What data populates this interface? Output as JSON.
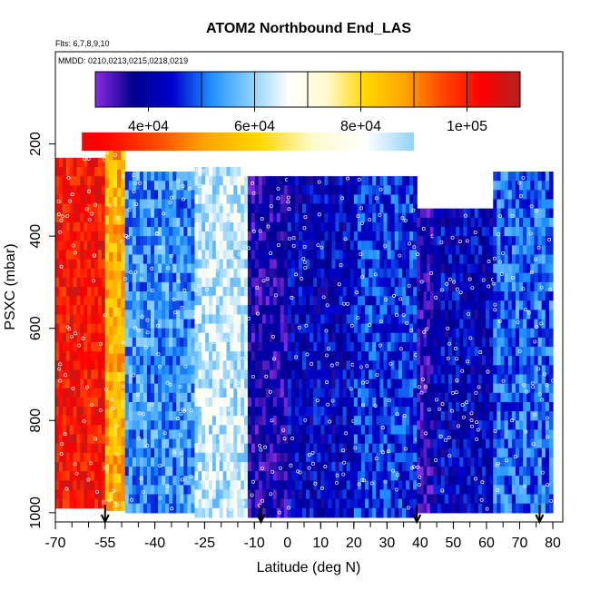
{
  "chart_data": {
    "type": "heatmap",
    "title": "ATOM2 Northbound End_LAS",
    "subtitle_flights": "Flts: 6,7,8,9,10",
    "subtitle_dates": "MMDD: 0210,0213,0215,0218,0219",
    "xlabel": "Latitude (deg N)",
    "ylabel": "PSXC (mbar)",
    "xlim": [
      -70,
      83
    ],
    "ylim": [
      1020,
      0
    ],
    "x_ticks": [
      -70,
      -55,
      -40,
      -25,
      -10,
      0,
      10,
      20,
      30,
      40,
      50,
      60,
      70,
      80
    ],
    "x_tick_labels": [
      "-70",
      "-55",
      "-40",
      "-25",
      "-10",
      "0",
      "10",
      "20",
      "30",
      "40",
      "50",
      "60",
      "70",
      "80"
    ],
    "y_ticks": [
      200,
      400,
      600,
      800,
      1000
    ],
    "y_tick_labels": [
      "200",
      "400",
      "600",
      "800",
      "1000"
    ],
    "colorbar": {
      "min": 30000,
      "max": 110000,
      "ticks": [
        40000,
        60000,
        80000,
        100000
      ],
      "tick_labels": [
        "4e+04",
        "6e+04",
        "8e+04",
        "1e+05"
      ],
      "colors": [
        "#8a2be2",
        "#00008b",
        "#0000cd",
        "#1e90ff",
        "#87cefa",
        "#ffffff",
        "#fffacd",
        "#ffd700",
        "#ffa500",
        "#ff4500",
        "#ff0000",
        "#b22222"
      ]
    },
    "arrow_latitudes": [
      -55,
      -8,
      39,
      76
    ],
    "columns": [
      {
        "lat0": -70,
        "lat1": -55,
        "top": 230,
        "bottom": 990,
        "value": 102000
      },
      {
        "lat0": -55,
        "lat1": -49,
        "top": 215,
        "bottom": 990,
        "value": 86000
      },
      {
        "lat0": -49,
        "lat1": -28,
        "top": 260,
        "bottom": 1000,
        "value": 53000
      },
      {
        "lat0": -28,
        "lat1": -12,
        "top": 250,
        "bottom": 1000,
        "value": 63000
      },
      {
        "lat0": -12,
        "lat1": 0,
        "top": 270,
        "bottom": 1000,
        "value": 37000
      },
      {
        "lat0": 0,
        "lat1": 20,
        "top": 270,
        "bottom": 1000,
        "value": 42000
      },
      {
        "lat0": 20,
        "lat1": 39,
        "top": 270,
        "bottom": 1000,
        "value": 47000
      },
      {
        "lat0": 39,
        "lat1": 44,
        "top": 340,
        "bottom": 1000,
        "value": 36000
      },
      {
        "lat0": 44,
        "lat1": 62,
        "top": 340,
        "bottom": 1000,
        "value": 42000
      },
      {
        "lat0": 62,
        "lat1": 80,
        "top": 260,
        "bottom": 1000,
        "value": 50000
      }
    ],
    "upper_band": {
      "lat0": -62,
      "lat1": 38,
      "top": 175,
      "bottom": 215,
      "value_start": 105000,
      "value_end": 60000
    }
  }
}
